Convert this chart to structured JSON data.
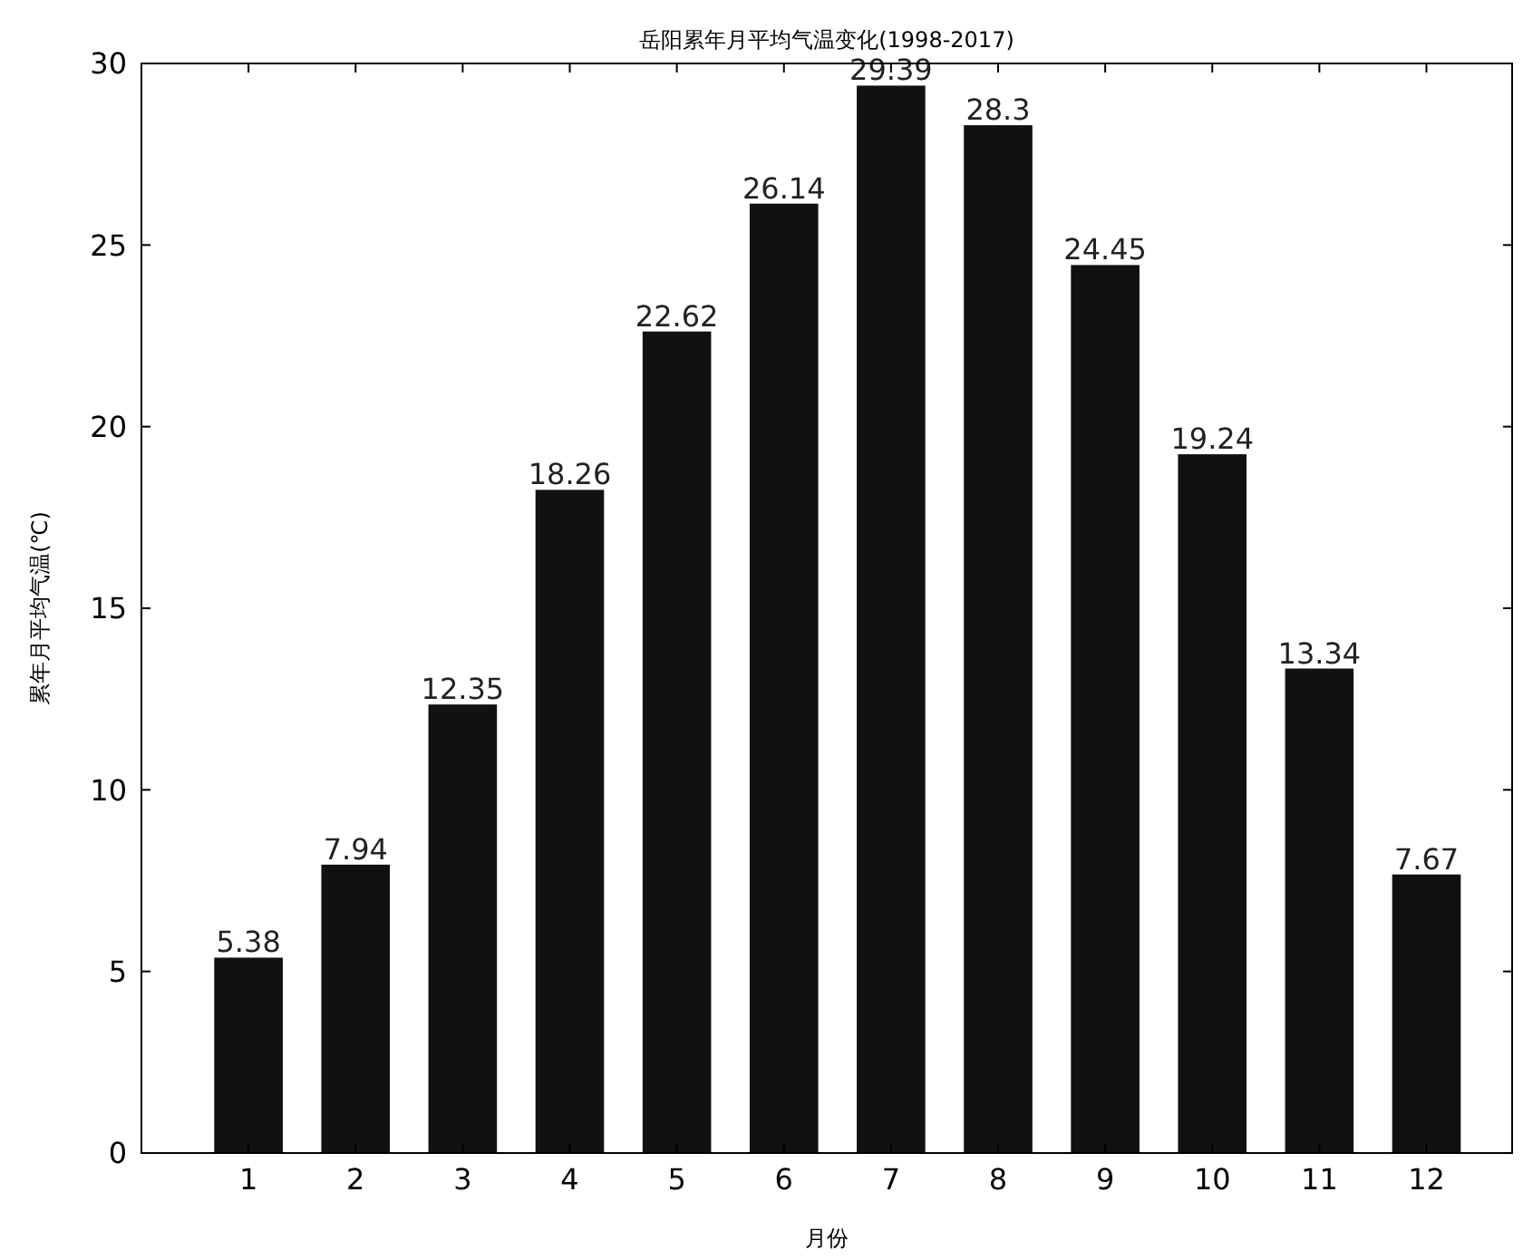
{
  "chart_data": {
    "type": "bar",
    "title": "岳阳累年月平均气温变化(1998-2017)",
    "xlabel": "月份",
    "ylabel": "累年月平均气温(℃)",
    "x": [
      1,
      2,
      3,
      4,
      5,
      6,
      7,
      8,
      9,
      10,
      11,
      12
    ],
    "values": [
      5.38,
      7.94,
      12.35,
      18.26,
      22.62,
      26.14,
      29.39,
      28.3,
      24.45,
      19.24,
      13.34,
      7.67
    ],
    "color": "#111111",
    "xlim": [
      0,
      12.8
    ],
    "xticks": [
      1,
      2,
      3,
      4,
      5,
      6,
      7,
      8,
      9,
      10,
      11,
      12
    ],
    "ylim": [
      0,
      30
    ],
    "yticks": [
      0,
      5,
      10,
      15,
      20,
      25,
      30
    ],
    "grid": false,
    "data_labels": true
  }
}
